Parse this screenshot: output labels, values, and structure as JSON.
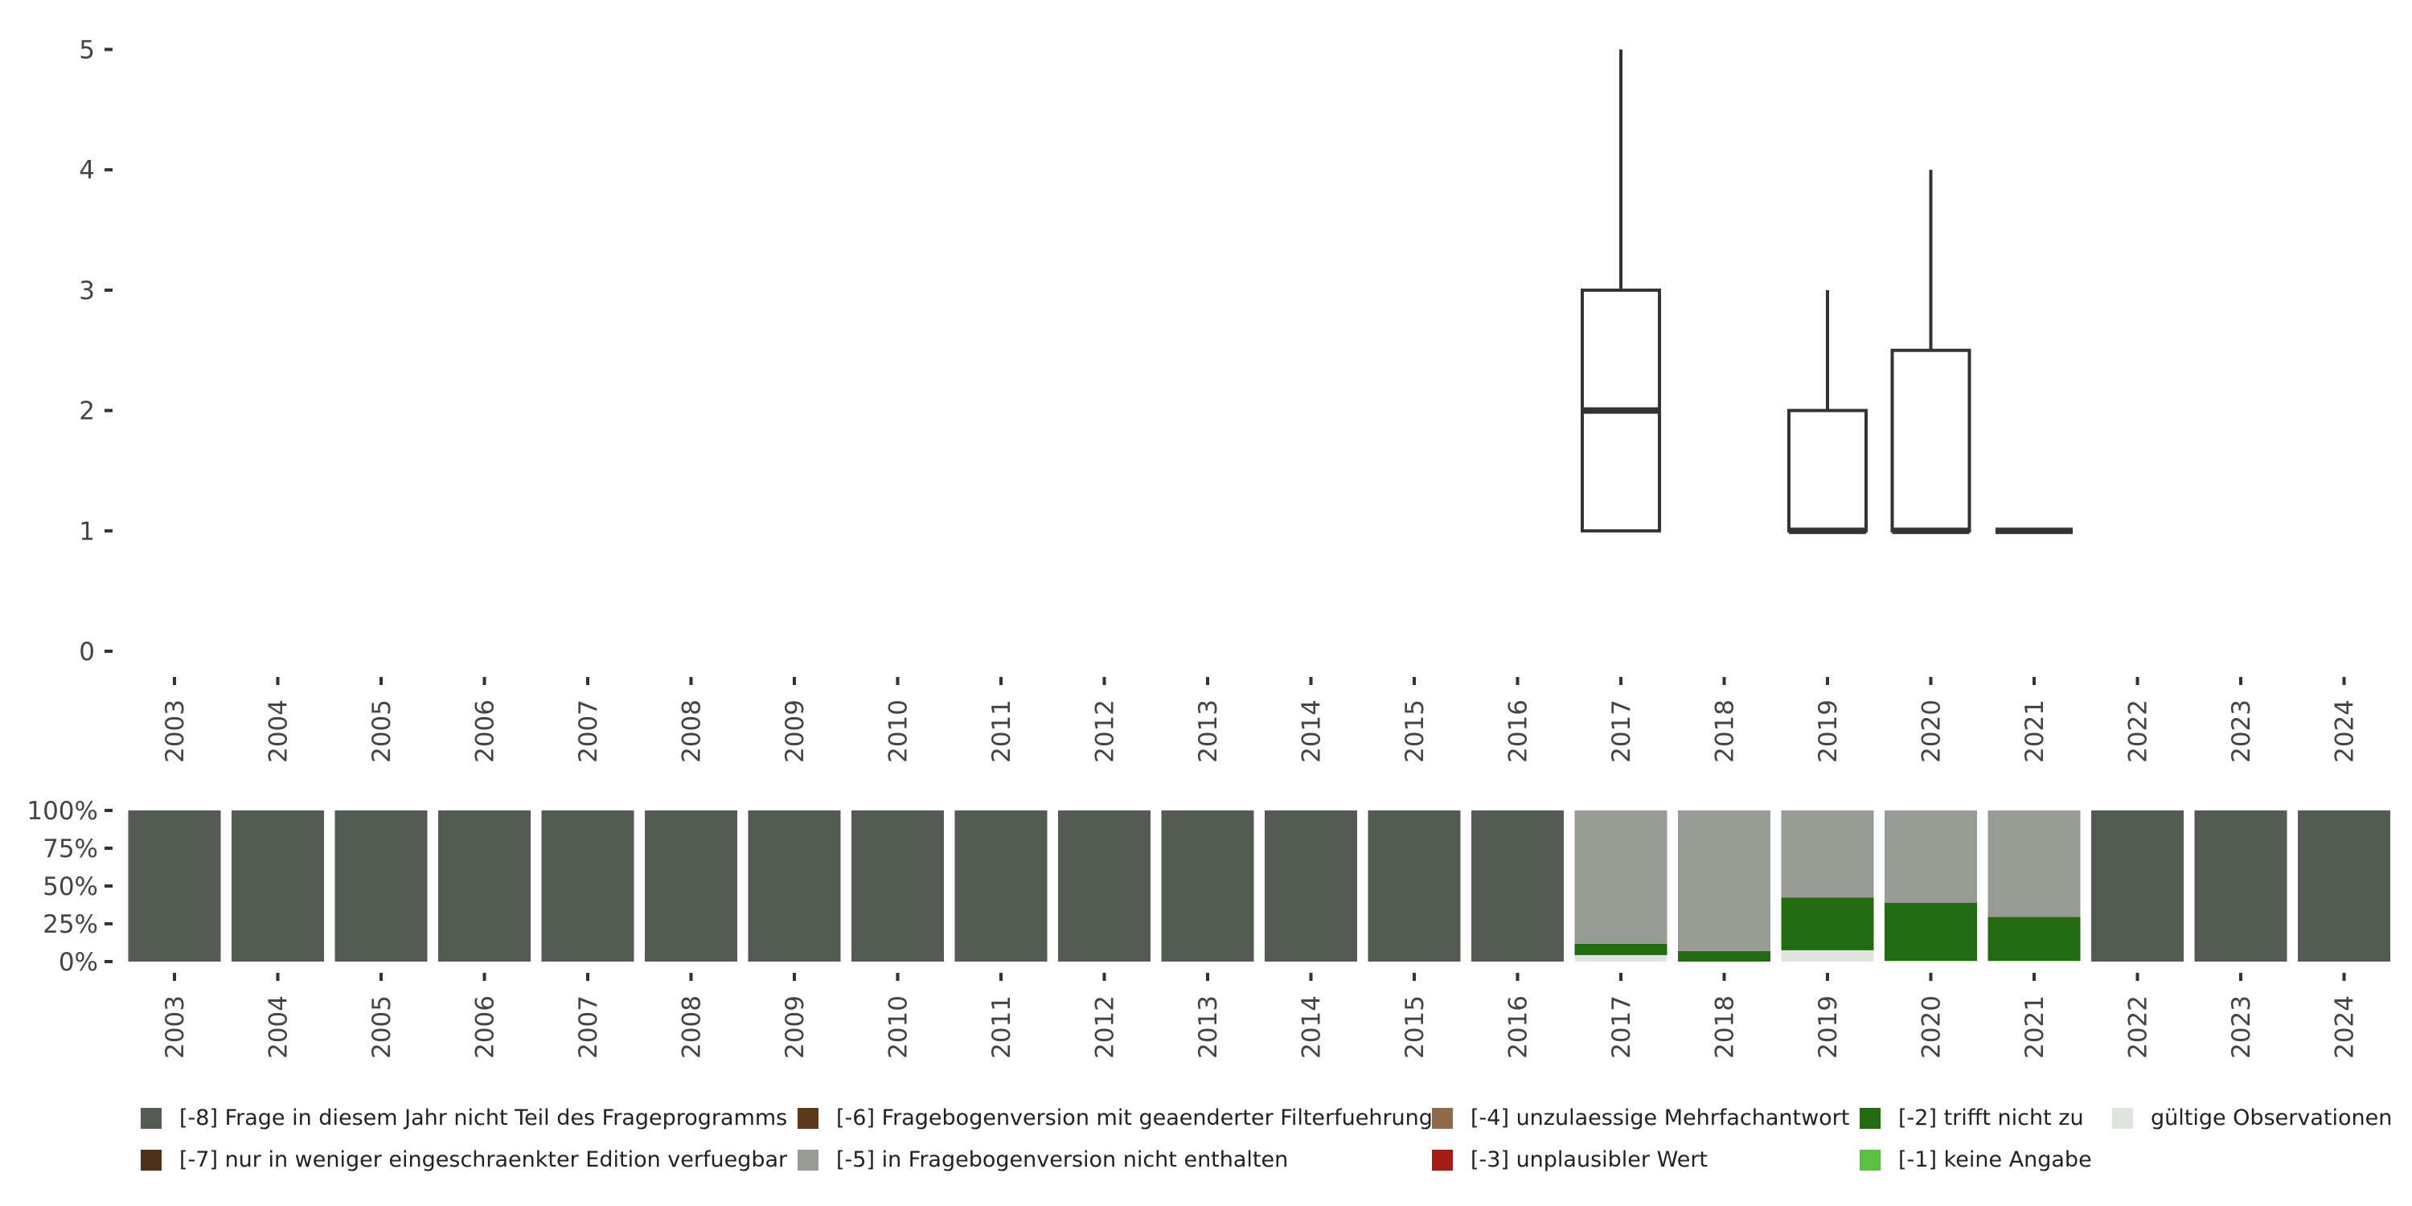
{
  "chart_data": [
    {
      "type": "boxplot",
      "years": [
        "2003",
        "2004",
        "2005",
        "2006",
        "2007",
        "2008",
        "2009",
        "2010",
        "2011",
        "2012",
        "2013",
        "2014",
        "2015",
        "2016",
        "2017",
        "2018",
        "2019",
        "2020",
        "2021",
        "2022",
        "2023",
        "2024"
      ],
      "ylim": [
        0,
        5
      ],
      "yticks": [
        "0",
        "1",
        "2",
        "3",
        "4",
        "5"
      ],
      "boxes": [
        {
          "year": "2017",
          "min": 1,
          "q1": 1,
          "median": 2,
          "q3": 3,
          "max": 5
        },
        {
          "year": "2019",
          "min": 1,
          "q1": 1,
          "median": 1,
          "q3": 2,
          "max": 3
        },
        {
          "year": "2020",
          "min": 1,
          "q1": 1,
          "median": 1,
          "q3": 2.5,
          "max": 4
        },
        {
          "year": "2021",
          "min": 1,
          "q1": 1,
          "median": 1,
          "q3": 1,
          "max": 1
        }
      ]
    },
    {
      "type": "bar",
      "stacked": true,
      "years": [
        "2003",
        "2004",
        "2005",
        "2006",
        "2007",
        "2008",
        "2009",
        "2010",
        "2011",
        "2012",
        "2013",
        "2014",
        "2015",
        "2016",
        "2017",
        "2018",
        "2019",
        "2020",
        "2021",
        "2022",
        "2023",
        "2024"
      ],
      "yticks": [
        "0%",
        "25%",
        "50%",
        "75%",
        "100%"
      ],
      "series": [
        {
          "name": "gültige Observationen",
          "color": "#e0e4e0",
          "values": [
            0,
            0,
            0,
            0,
            0,
            0,
            0,
            0,
            0,
            0,
            0,
            0,
            0,
            0,
            4.3,
            0,
            7.5,
            0.5,
            0.5,
            0,
            0,
            0
          ]
        },
        {
          "name": "[-2] trifft nicht zu",
          "color": "#226b10",
          "values": [
            0,
            0,
            0,
            0,
            0,
            0,
            0,
            0,
            0,
            0,
            0,
            0,
            0,
            0,
            7.5,
            7,
            34.8,
            38.5,
            29,
            0,
            0,
            0
          ]
        },
        {
          "name": "[-5] in Fragebogenversion nicht enthalten",
          "color": "#979b94",
          "values": [
            0,
            0,
            0,
            0,
            0,
            0,
            0,
            0,
            0,
            0,
            0,
            0,
            0,
            0,
            88.2,
            93,
            57.7,
            61,
            70.5,
            0,
            0,
            0
          ]
        },
        {
          "name": "[-8] Frage in diesem Jahr nicht Teil des Frageprogramms",
          "color": "#535b53",
          "values": [
            100,
            100,
            100,
            100,
            100,
            100,
            100,
            100,
            100,
            100,
            100,
            100,
            100,
            100,
            0,
            0,
            0,
            0,
            0,
            100,
            100,
            100
          ]
        }
      ]
    }
  ],
  "legend": [
    {
      "label": "[-8] Frage in diesem Jahr nicht Teil des Frageprogramms",
      "color": "#535b53"
    },
    {
      "label": "[-7] nur in weniger eingeschraenkter Edition verfuegbar",
      "color": "#4a3118"
    },
    {
      "label": "[-6] Fragebogenversion mit geaenderter Filterfuehrung",
      "color": "#5c3a1a"
    },
    {
      "label": "[-5] in Fragebogenversion nicht enthalten",
      "color": "#979b94"
    },
    {
      "label": "[-4] unzulaessige Mehrfachantwort",
      "color": "#8f6a4a"
    },
    {
      "label": "[-3] unplausibler Wert",
      "color": "#a71b17"
    },
    {
      "label": "[-2] trifft nicht zu",
      "color": "#226b10"
    },
    {
      "label": "[-1] keine Angabe",
      "color": "#5cbf40"
    },
    {
      "label": "gültige Observationen",
      "color": "#e0e4e0"
    }
  ]
}
